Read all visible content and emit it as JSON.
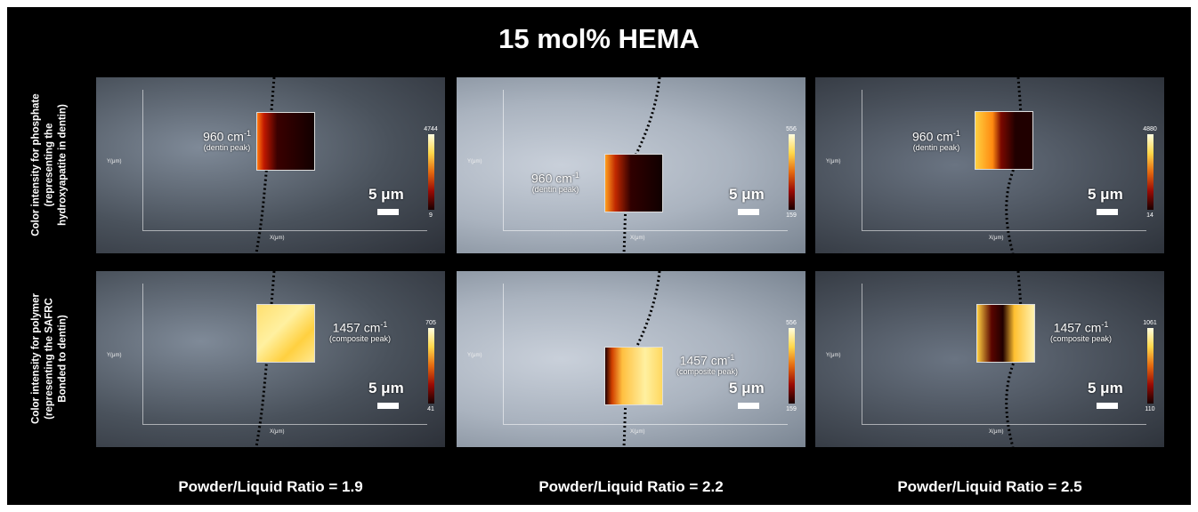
{
  "header": {
    "title": "15 mol% HEMA"
  },
  "rows": [
    {
      "label": [
        "Color intensity for phosphate",
        "(representing the",
        "hydroxyapatite in dentin)"
      ]
    },
    {
      "label": [
        "Color intensity for  polymer",
        "(representing the SAFRC",
        "Bonded to dentin)"
      ]
    }
  ],
  "columns": [
    {
      "label": "Powder/Liquid Ratio = 1.9"
    },
    {
      "label": "Powder/Liquid Ratio = 2.2"
    },
    {
      "label": "Powder/Liquid Ratio = 2.5"
    }
  ],
  "panels": [
    [
      {
        "peak": "960 cm",
        "exponent": "-1",
        "note": "(dentin peak)",
        "colorbar_max": "4744",
        "colorbar_min": "9",
        "scale": "5 μm",
        "y_axis": "Y(μm)",
        "x_axis": "X(μm)"
      },
      {
        "peak": "960 cm",
        "exponent": "-1",
        "note": "(dentin peak)",
        "colorbar_max": "556",
        "colorbar_min": "159",
        "scale": "5 μm",
        "y_axis": "Y(μm)",
        "x_axis": "X(μm)"
      },
      {
        "peak": "960 cm",
        "exponent": "-1",
        "note": "(dentin peak)",
        "colorbar_max": "4880",
        "colorbar_min": "14",
        "scale": "5 μm",
        "y_axis": "Y(μm)",
        "x_axis": "X(μm)"
      }
    ],
    [
      {
        "peak": "1457 cm",
        "exponent": "-1",
        "note": "(composite peak)",
        "colorbar_max": "705",
        "colorbar_min": "41",
        "scale": "5 μm",
        "y_axis": "Y(μm)",
        "x_axis": "X(μm)"
      },
      {
        "peak": "1457 cm",
        "exponent": "-1",
        "note": "(composite peak)",
        "colorbar_max": "556",
        "colorbar_min": "159",
        "scale": "5 μm",
        "y_axis": "Y(μm)",
        "x_axis": "X(μm)"
      },
      {
        "peak": "1457 cm",
        "exponent": "-1",
        "note": "(composite peak)",
        "colorbar_max": "1061",
        "colorbar_min": "110",
        "scale": "5 μm",
        "y_axis": "Y(μm)",
        "x_axis": "X(μm)"
      }
    ]
  ]
}
